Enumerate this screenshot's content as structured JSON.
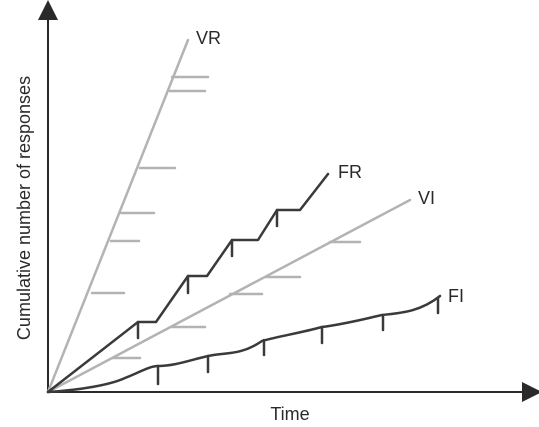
{
  "diagram": {
    "x_axis_label": "Time",
    "y_axis_label": "Cumulative number of responses",
    "curves": [
      {
        "key": "vr",
        "label": "VR",
        "color": "#b3b3b3"
      },
      {
        "key": "fr",
        "label": "FR",
        "color": "#3a3a3a"
      },
      {
        "key": "vi",
        "label": "VI",
        "color": "#b3b3b3"
      },
      {
        "key": "fi",
        "label": "FI",
        "color": "#3a3a3a"
      }
    ],
    "colors": {
      "axis": "#2a2a2a",
      "light_curve": "#b3b3b3",
      "dark_curve": "#3a3a3a",
      "background": "#ffffff"
    }
  }
}
